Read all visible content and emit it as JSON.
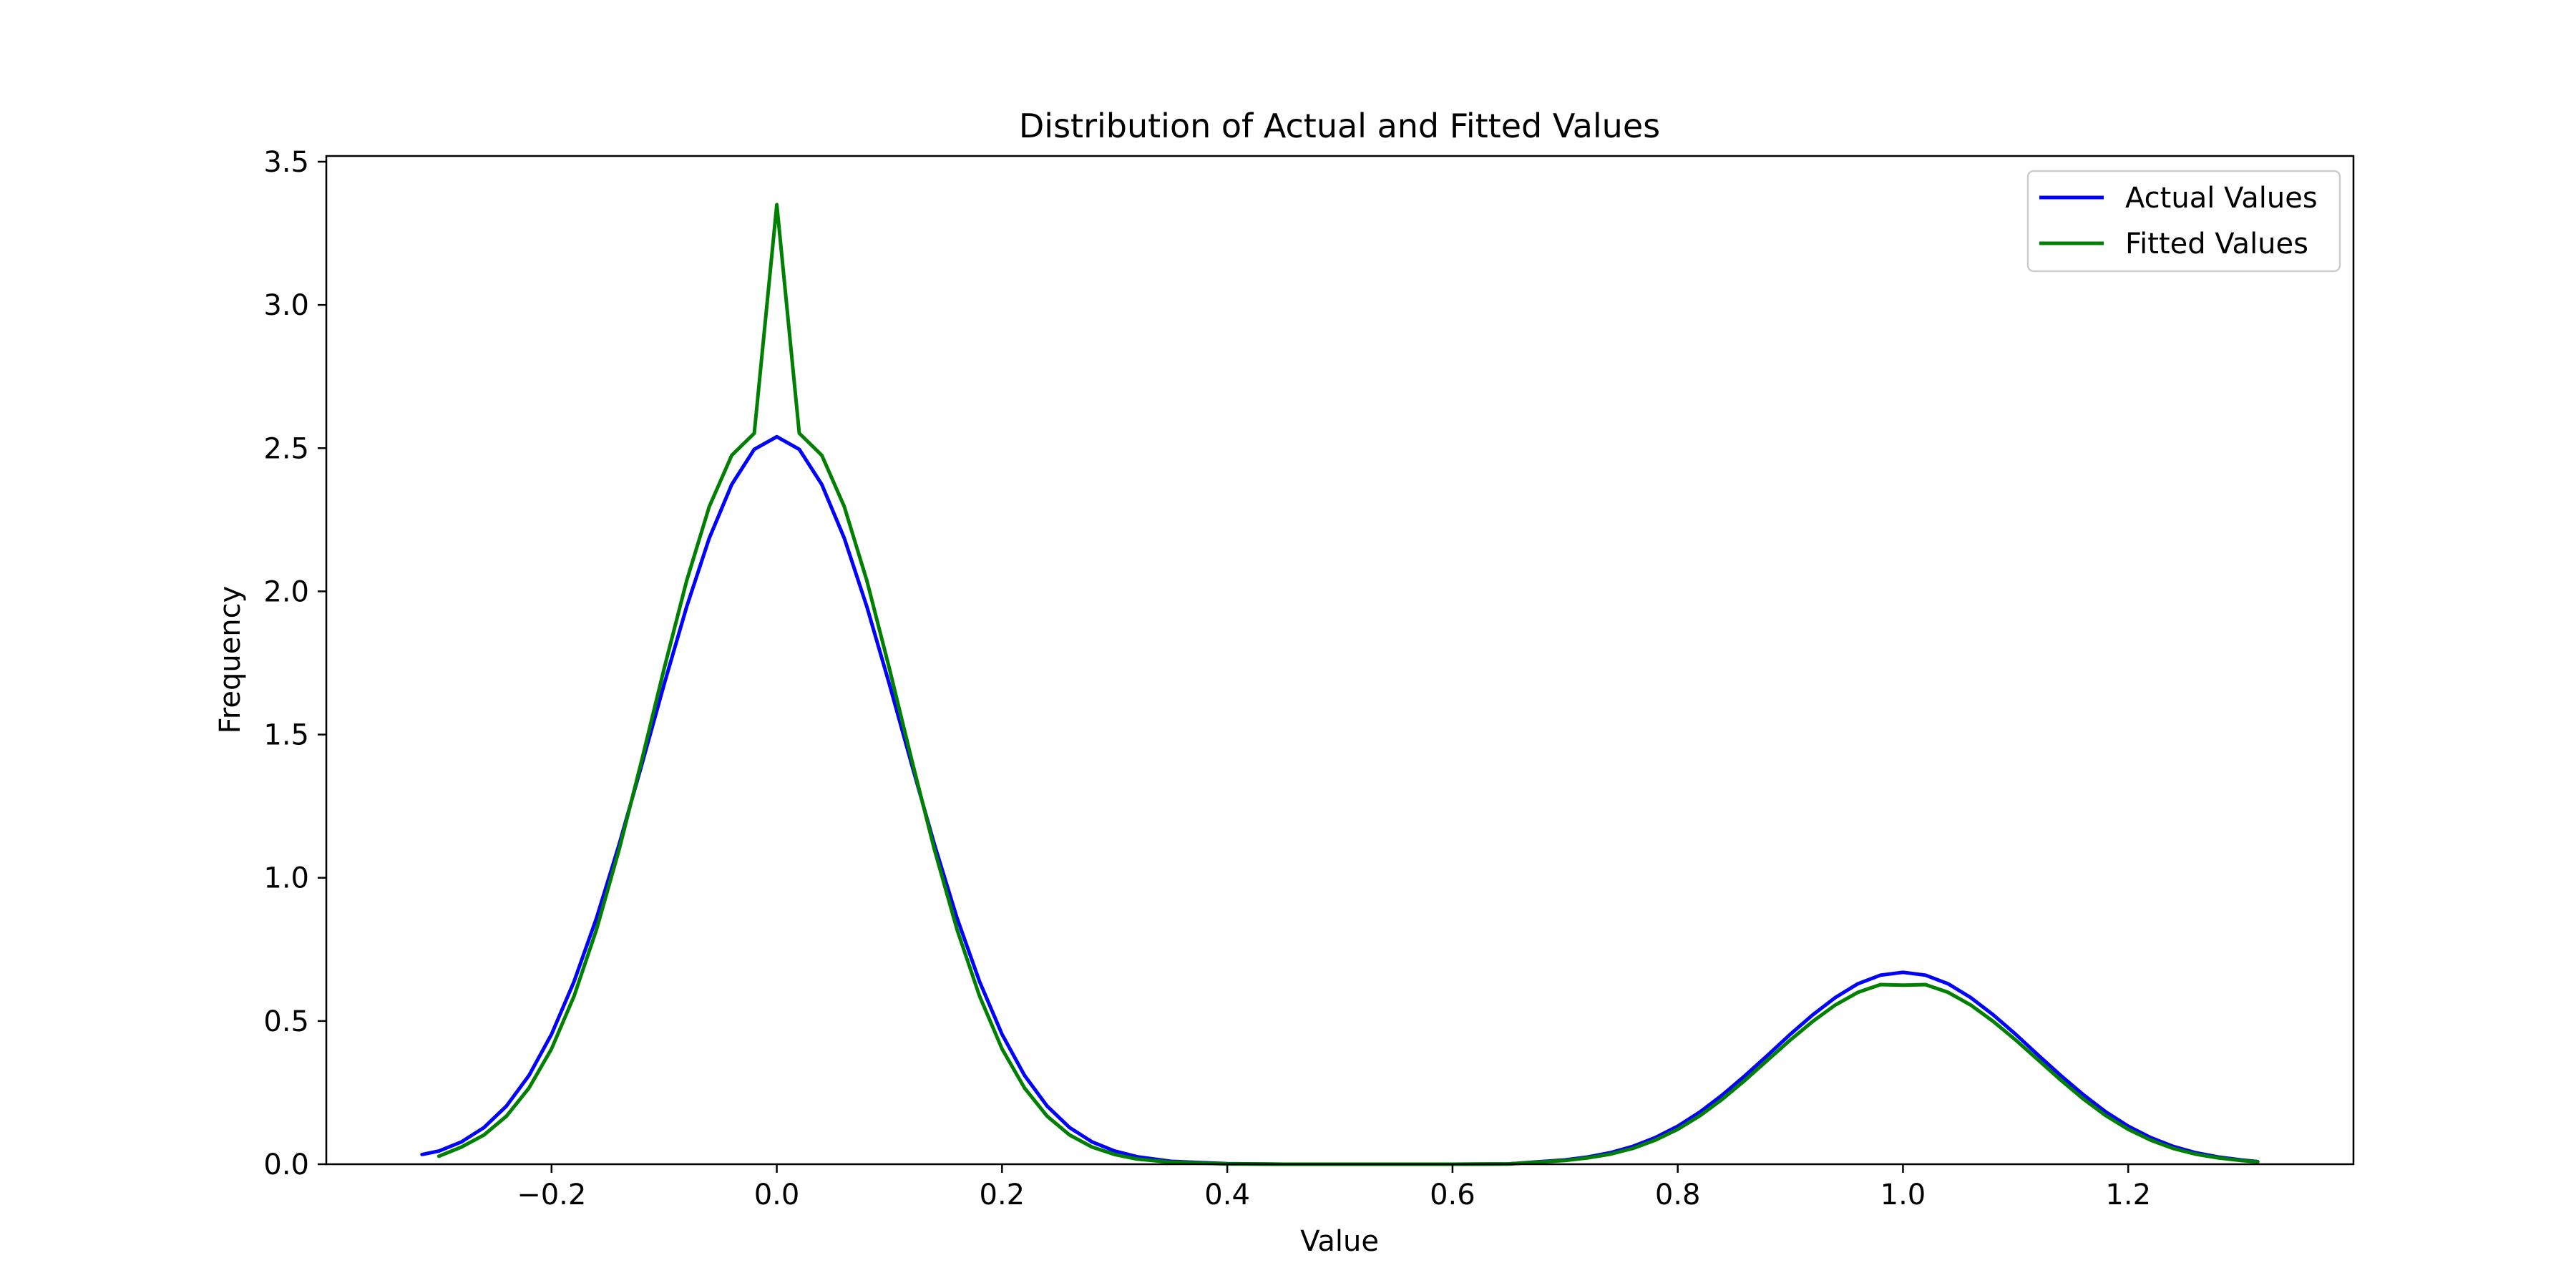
{
  "chart_data": {
    "type": "line",
    "title": "Distribution of Actual and Fitted Values",
    "xlabel": "Value",
    "ylabel": "Frequency",
    "xlim": [
      -0.4,
      1.4
    ],
    "ylim": [
      0,
      3.52
    ],
    "xticks": [
      -0.2,
      0.0,
      0.2,
      0.4,
      0.6,
      0.8,
      1.0,
      1.2
    ],
    "xtick_labels": [
      "−0.2",
      "0.0",
      "0.2",
      "0.4",
      "0.6",
      "0.8",
      "1.0",
      "1.2"
    ],
    "yticks": [
      0.0,
      0.5,
      1.0,
      1.5,
      2.0,
      2.5,
      3.0,
      3.5
    ],
    "ytick_labels": [
      "0.0",
      "0.5",
      "1.0",
      "1.5",
      "2.0",
      "2.5",
      "3.0",
      "3.5"
    ],
    "grid": false,
    "legend_position": "upper right",
    "series": [
      {
        "name": "Actual Values",
        "color": "#0000ff",
        "x": [
          -0.315,
          -0.3,
          -0.28,
          -0.26,
          -0.24,
          -0.22,
          -0.2,
          -0.18,
          -0.16,
          -0.14,
          -0.12,
          -0.1,
          -0.08,
          -0.06,
          -0.04,
          -0.02,
          0.0,
          0.02,
          0.04,
          0.06,
          0.08,
          0.1,
          0.12,
          0.14,
          0.16,
          0.18,
          0.2,
          0.22,
          0.24,
          0.26,
          0.28,
          0.3,
          0.32,
          0.35,
          0.4,
          0.45,
          0.5,
          0.55,
          0.6,
          0.65,
          0.7,
          0.72,
          0.74,
          0.76,
          0.78,
          0.8,
          0.82,
          0.84,
          0.86,
          0.88,
          0.9,
          0.92,
          0.94,
          0.96,
          0.98,
          1.0,
          1.02,
          1.04,
          1.06,
          1.08,
          1.1,
          1.12,
          1.14,
          1.16,
          1.18,
          1.2,
          1.22,
          1.24,
          1.26,
          1.28,
          1.3,
          1.315
        ],
        "y": [
          0.034,
          0.046,
          0.078,
          0.128,
          0.203,
          0.31,
          0.454,
          0.638,
          0.86,
          1.116,
          1.393,
          1.676,
          1.946,
          2.185,
          2.373,
          2.496,
          2.54,
          2.496,
          2.373,
          2.185,
          1.946,
          1.676,
          1.393,
          1.116,
          0.86,
          0.638,
          0.454,
          0.31,
          0.203,
          0.128,
          0.078,
          0.046,
          0.026,
          0.01,
          0.002,
          0.0,
          0.0,
          0.0,
          0.0,
          0.001,
          0.015,
          0.025,
          0.04,
          0.062,
          0.093,
          0.133,
          0.183,
          0.243,
          0.31,
          0.381,
          0.454,
          0.522,
          0.582,
          0.63,
          0.66,
          0.67,
          0.66,
          0.63,
          0.582,
          0.522,
          0.454,
          0.381,
          0.31,
          0.243,
          0.183,
          0.133,
          0.093,
          0.062,
          0.04,
          0.025,
          0.015,
          0.009
        ]
      },
      {
        "name": "Fitted Values",
        "color": "#008000",
        "x": [
          -0.3,
          -0.28,
          -0.26,
          -0.24,
          -0.22,
          -0.2,
          -0.18,
          -0.16,
          -0.14,
          -0.12,
          -0.1,
          -0.08,
          -0.06,
          -0.04,
          -0.02,
          0.0,
          0.02,
          0.04,
          0.06,
          0.08,
          0.1,
          0.12,
          0.14,
          0.16,
          0.18,
          0.2,
          0.22,
          0.24,
          0.26,
          0.28,
          0.3,
          0.32,
          0.35,
          0.4,
          0.45,
          0.5,
          0.55,
          0.6,
          0.65,
          0.7,
          0.72,
          0.74,
          0.76,
          0.78,
          0.8,
          0.82,
          0.84,
          0.86,
          0.88,
          0.9,
          0.92,
          0.94,
          0.96,
          0.98,
          1.0,
          1.02,
          1.04,
          1.06,
          1.08,
          1.1,
          1.12,
          1.14,
          1.16,
          1.18,
          1.2,
          1.22,
          1.24,
          1.26,
          1.28,
          1.3,
          1.315
        ],
        "y": [
          0.028,
          0.06,
          0.102,
          0.168,
          0.266,
          0.403,
          0.587,
          0.82,
          1.098,
          1.409,
          1.731,
          2.037,
          2.295,
          2.475,
          2.552,
          3.35,
          2.552,
          2.475,
          2.295,
          2.037,
          1.731,
          1.409,
          1.098,
          0.82,
          0.587,
          0.403,
          0.266,
          0.168,
          0.102,
          0.06,
          0.034,
          0.018,
          0.007,
          0.001,
          0.0,
          0.0,
          0.0,
          0.0,
          0.001,
          0.013,
          0.022,
          0.035,
          0.055,
          0.084,
          0.122,
          0.17,
          0.228,
          0.294,
          0.364,
          0.434,
          0.499,
          0.556,
          0.6,
          0.627,
          0.625,
          0.627,
          0.6,
          0.556,
          0.499,
          0.434,
          0.364,
          0.294,
          0.228,
          0.17,
          0.122,
          0.084,
          0.055,
          0.035,
          0.022,
          0.013,
          0.008
        ]
      }
    ]
  }
}
